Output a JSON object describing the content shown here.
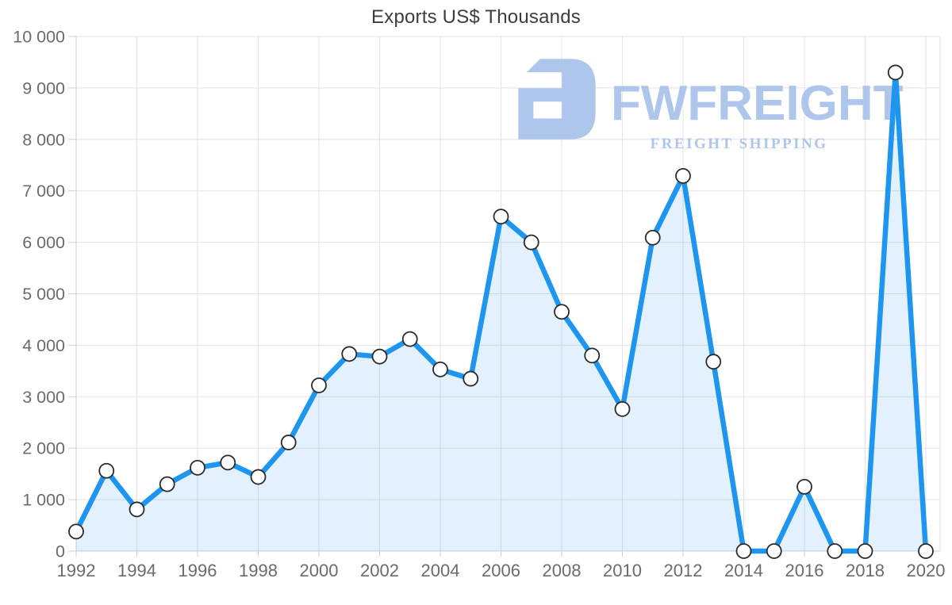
{
  "chart_data": {
    "type": "area",
    "title": "Exports US$ Thousands",
    "xlabel": "",
    "ylabel": "",
    "x": [
      1992,
      1993,
      1994,
      1995,
      1996,
      1997,
      1998,
      1999,
      2000,
      2001,
      2002,
      2003,
      2004,
      2005,
      2006,
      2007,
      2008,
      2009,
      2010,
      2011,
      2012,
      2013,
      2014,
      2015,
      2016,
      2017,
      2018,
      2019,
      2020
    ],
    "values": [
      380,
      1560,
      810,
      1300,
      1620,
      1720,
      1440,
      2110,
      3220,
      3830,
      3780,
      4120,
      3530,
      3350,
      6500,
      6000,
      4650,
      3800,
      2760,
      6090,
      7290,
      3680,
      0,
      0,
      1250,
      0,
      0,
      9300,
      0
    ],
    "series_name": "Exports US$ Thousands",
    "xlim": [
      1992,
      2020
    ],
    "ylim": [
      0,
      10000
    ],
    "y_tick_step": 1000,
    "x_tick_step": 2,
    "grid": "on",
    "legend": "none",
    "x_tick_labels": [
      "1992",
      "1994",
      "1996",
      "1998",
      "2000",
      "2002",
      "2004",
      "2006",
      "2008",
      "2010",
      "2012",
      "2014",
      "2016",
      "2018",
      "2020"
    ],
    "y_tick_labels": [
      "0",
      "1 000",
      "2 000",
      "3 000",
      "4 000",
      "5 000",
      "6 000",
      "7 000",
      "8 000",
      "9 000",
      "10 000"
    ],
    "colors": {
      "line": "#1E96F0",
      "area_fill": "rgba(30,150,240,0.13)",
      "marker_fill": "#FFFFFF",
      "marker_stroke": "#2B2B2B",
      "gridline": "#E3E3E3",
      "axis": "#CFCFCF",
      "tick_text": "#6B6B6B",
      "title_text": "#3D3D3D"
    }
  },
  "logo": {
    "name": "FWFREIGHT",
    "tagline": "FREIGHT SHIPPING",
    "color": "#A8C2EB"
  }
}
